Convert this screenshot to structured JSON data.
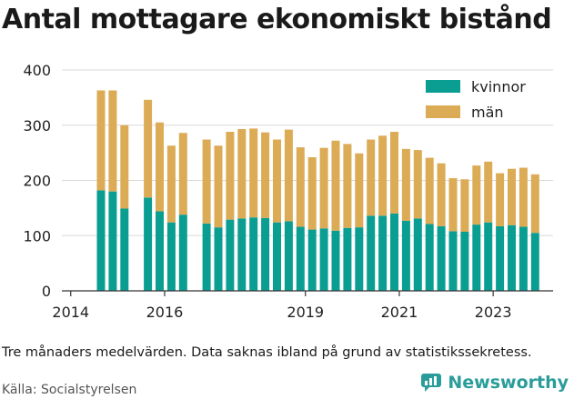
{
  "title": "Antal mottagare ekonomiskt bistånd",
  "caption": "Tre månaders medelvärden. Data saknas ibland på grund av statistikssekretess.",
  "source": "Källa: Socialstyrelsen",
  "brand": {
    "name": "Newsworthy",
    "icon": "newsworthy-logo-icon"
  },
  "colors": {
    "kvinnor": "#0a9e93",
    "man": "#dcab55",
    "grid": "#d9d9d9",
    "axis": "#333333"
  },
  "chart_data": {
    "type": "bar",
    "stacked": true,
    "title": "Antal mottagare ekonomiskt bistånd",
    "x_ticks": [
      "2014",
      "2016",
      "2019",
      "2021",
      "2023"
    ],
    "y_ticks": [
      0,
      100,
      200,
      300,
      400
    ],
    "ylim": [
      0,
      400
    ],
    "legend_position": "top-right",
    "categories": [
      "2014-Q3",
      "2014-Q4",
      "2015-Q1",
      "2015-Q2",
      "2015-Q3",
      "2015-Q4",
      "2016-Q1",
      "2016-Q2",
      "2016-Q3",
      "2016-Q4",
      "2017-Q1",
      "2017-Q2",
      "2017-Q3",
      "2017-Q4",
      "2018-Q1",
      "2018-Q2",
      "2018-Q3",
      "2018-Q4",
      "2019-Q1",
      "2019-Q2",
      "2019-Q3",
      "2019-Q4",
      "2020-Q1",
      "2020-Q2",
      "2020-Q3",
      "2020-Q4",
      "2021-Q1",
      "2021-Q2",
      "2021-Q3",
      "2021-Q4",
      "2022-Q1",
      "2022-Q2",
      "2022-Q3",
      "2022-Q4",
      "2023-Q1",
      "2023-Q2",
      "2023-Q3",
      "2023-Q4"
    ],
    "series": [
      {
        "name": "kvinnor",
        "values": [
          182,
          180,
          149,
          null,
          169,
          144,
          124,
          138,
          null,
          122,
          115,
          129,
          131,
          133,
          132,
          124,
          126,
          116,
          111,
          113,
          109,
          114,
          115,
          136,
          136,
          140,
          127,
          131,
          121,
          117,
          108,
          107,
          120,
          124,
          117,
          119,
          116,
          105
        ]
      },
      {
        "name": "män",
        "values": [
          181,
          183,
          151,
          null,
          177,
          161,
          139,
          148,
          null,
          152,
          148,
          159,
          162,
          161,
          155,
          150,
          166,
          144,
          131,
          146,
          163,
          152,
          134,
          138,
          145,
          148,
          130,
          124,
          120,
          114,
          96,
          95,
          107,
          110,
          96,
          102,
          107,
          106
        ]
      }
    ]
  }
}
